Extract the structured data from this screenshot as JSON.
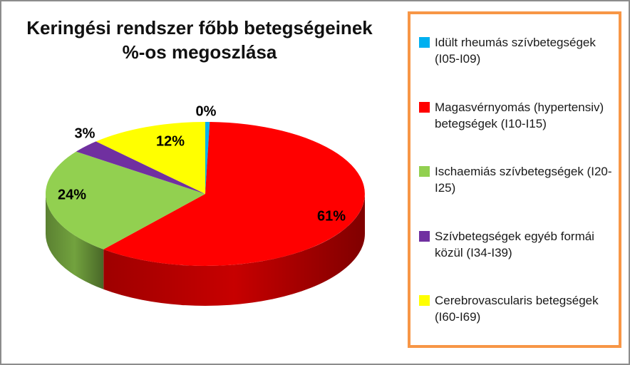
{
  "chart_data": {
    "type": "pie",
    "style": "3d",
    "title": "Keringési rendszer főbb betegségeinek %-os megoszlása",
    "title_lines": [
      "Keringési rendszer főbb betegségeinek",
      "%-os megoszlása"
    ],
    "legend_position": "right",
    "series": [
      {
        "name": "Idült rheumás szívbetegségek (I05-I09)",
        "value": 0,
        "pct_label": "0%",
        "color": "#00B0F0"
      },
      {
        "name": "Magasvérnyomás (hypertensiv) betegségek (I10-I15)",
        "value": 61,
        "pct_label": "61%",
        "color": "#FF0000"
      },
      {
        "name": "Ischaemiás szívbetegségek (I20-I25)",
        "value": 24,
        "pct_label": "24%",
        "color": "#92D050"
      },
      {
        "name": "Szívbetegségek egyéb formái közül (I34-I39)",
        "value": 3,
        "pct_label": "3%",
        "color": "#7030A0"
      },
      {
        "name": "Cerebrovascularis betegségek (I60-I69)",
        "value": 12,
        "pct_label": "12%",
        "color": "#FFFF00"
      }
    ],
    "colors": {
      "legend_border": "#F79646",
      "frame_border": "#8C8C8C",
      "label_color": "#000000",
      "title_color": "#111111"
    }
  }
}
